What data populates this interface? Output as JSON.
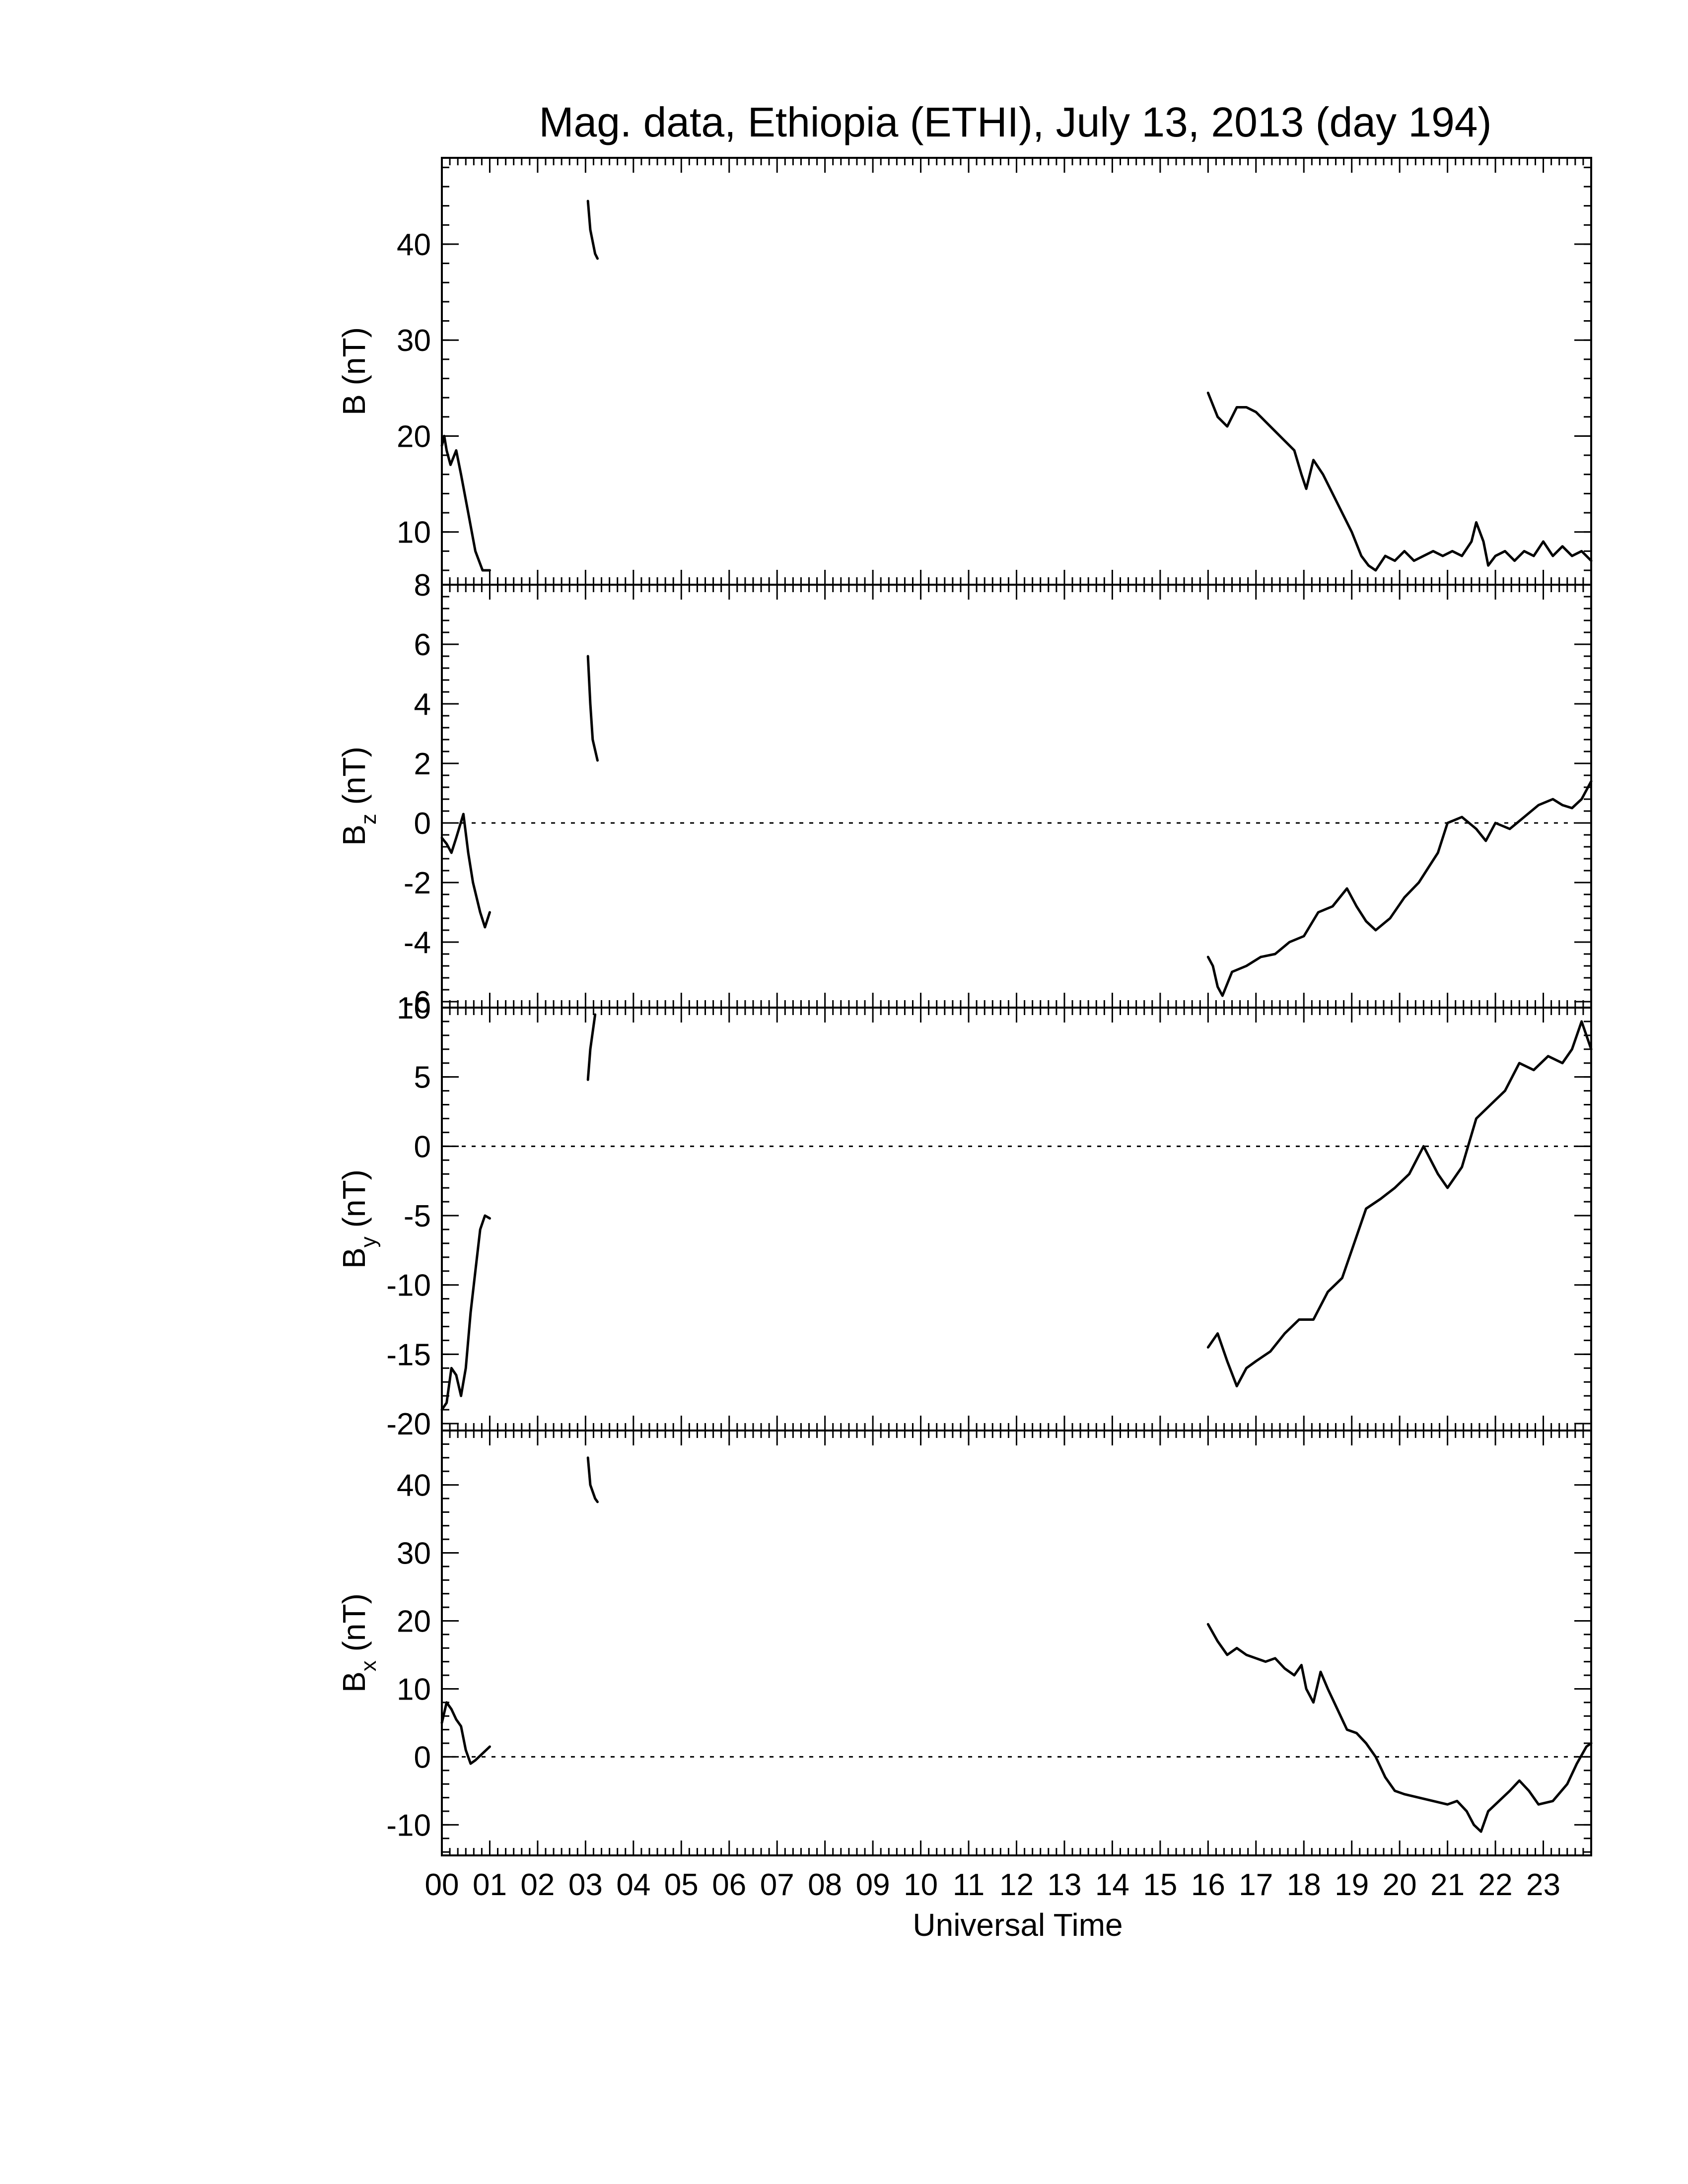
{
  "chart_data": {
    "type": "line",
    "title": "Mag. data, Ethiopia (ETHI), July 13, 2013 (day 194)",
    "xlabel": "Universal Time",
    "xlim": [
      0,
      24
    ],
    "x_tick_labels": [
      "00",
      "01",
      "02",
      "03",
      "04",
      "05",
      "06",
      "07",
      "08",
      "09",
      "10",
      "11",
      "12",
      "13",
      "14",
      "15",
      "16",
      "17",
      "18",
      "19",
      "20",
      "21",
      "22",
      "23"
    ],
    "panels": [
      {
        "ylabel": "B (nT)",
        "ylim": [
          4.5,
          49
        ],
        "yticks": [
          10,
          20,
          30,
          40
        ],
        "ytick_labels": [
          "10",
          "20",
          "30",
          "40"
        ],
        "zero_line": false,
        "segments": [
          [
            [
              0.0,
              19.0
            ],
            [
              0.05,
              20.0
            ],
            [
              0.1,
              18.5
            ],
            [
              0.18,
              17.0
            ],
            [
              0.3,
              18.5
            ],
            [
              0.4,
              16.0
            ],
            [
              0.55,
              12.0
            ],
            [
              0.7,
              8.0
            ],
            [
              0.85,
              6.0
            ],
            [
              1.0,
              6.0
            ]
          ],
          [
            [
              3.05,
              44.5
            ],
            [
              3.1,
              41.5
            ],
            [
              3.2,
              39.0
            ],
            [
              3.25,
              38.5
            ]
          ],
          [
            [
              16.0,
              24.5
            ],
            [
              16.2,
              22.0
            ],
            [
              16.4,
              21.0
            ],
            [
              16.6,
              23.0
            ],
            [
              16.8,
              23.0
            ],
            [
              17.0,
              22.5
            ],
            [
              17.2,
              21.5
            ],
            [
              17.4,
              20.5
            ],
            [
              17.6,
              19.5
            ],
            [
              17.8,
              18.5
            ],
            [
              17.95,
              16.0
            ],
            [
              18.05,
              14.5
            ],
            [
              18.2,
              17.5
            ],
            [
              18.4,
              16.0
            ],
            [
              18.6,
              14.0
            ],
            [
              18.8,
              12.0
            ],
            [
              19.0,
              10.0
            ],
            [
              19.2,
              7.5
            ],
            [
              19.35,
              6.5
            ],
            [
              19.5,
              6.0
            ],
            [
              19.7,
              7.5
            ],
            [
              19.9,
              7.0
            ],
            [
              20.1,
              8.0
            ],
            [
              20.3,
              7.0
            ],
            [
              20.5,
              7.5
            ],
            [
              20.7,
              8.0
            ],
            [
              20.9,
              7.5
            ],
            [
              21.1,
              8.0
            ],
            [
              21.3,
              7.5
            ],
            [
              21.5,
              9.0
            ],
            [
              21.6,
              11.0
            ],
            [
              21.75,
              9.0
            ],
            [
              21.85,
              6.5
            ],
            [
              22.0,
              7.5
            ],
            [
              22.2,
              8.0
            ],
            [
              22.4,
              7.0
            ],
            [
              22.6,
              8.0
            ],
            [
              22.8,
              7.5
            ],
            [
              23.0,
              9.0
            ],
            [
              23.2,
              7.5
            ],
            [
              23.4,
              8.5
            ],
            [
              23.6,
              7.5
            ],
            [
              23.8,
              8.0
            ],
            [
              24.0,
              7.0
            ]
          ]
        ]
      },
      {
        "ylabel": "B_z (nT)",
        "ylim": [
          -6.2,
          8.0
        ],
        "yticks": [
          -6,
          -4,
          -2,
          0,
          2,
          4,
          6,
          8
        ],
        "ytick_labels": [
          "-6",
          "-4",
          "-2",
          "0",
          "2",
          "4",
          "6",
          "8"
        ],
        "zero_line": true,
        "segments": [
          [
            [
              0.0,
              -0.5
            ],
            [
              0.1,
              -0.7
            ],
            [
              0.2,
              -1.0
            ],
            [
              0.3,
              -0.5
            ],
            [
              0.45,
              0.3
            ],
            [
              0.55,
              -1.0
            ],
            [
              0.65,
              -2.0
            ],
            [
              0.8,
              -3.0
            ],
            [
              0.9,
              -3.5
            ],
            [
              1.0,
              -3.0
            ]
          ],
          [
            [
              3.05,
              5.6
            ],
            [
              3.1,
              4.0
            ],
            [
              3.15,
              2.8
            ],
            [
              3.25,
              2.1
            ]
          ],
          [
            [
              16.0,
              -4.5
            ],
            [
              16.1,
              -4.8
            ],
            [
              16.2,
              -5.5
            ],
            [
              16.3,
              -5.8
            ],
            [
              16.5,
              -5.0
            ],
            [
              16.8,
              -4.8
            ],
            [
              17.1,
              -4.5
            ],
            [
              17.4,
              -4.4
            ],
            [
              17.7,
              -4.0
            ],
            [
              18.0,
              -3.8
            ],
            [
              18.3,
              -3.0
            ],
            [
              18.6,
              -2.8
            ],
            [
              18.9,
              -2.2
            ],
            [
              19.1,
              -2.8
            ],
            [
              19.3,
              -3.3
            ],
            [
              19.5,
              -3.6
            ],
            [
              19.8,
              -3.2
            ],
            [
              20.1,
              -2.5
            ],
            [
              20.4,
              -2.0
            ],
            [
              20.6,
              -1.5
            ],
            [
              20.8,
              -1.0
            ],
            [
              21.0,
              0.0
            ],
            [
              21.3,
              0.2
            ],
            [
              21.6,
              -0.2
            ],
            [
              21.8,
              -0.6
            ],
            [
              22.0,
              0.0
            ],
            [
              22.3,
              -0.2
            ],
            [
              22.6,
              0.2
            ],
            [
              22.9,
              0.6
            ],
            [
              23.2,
              0.8
            ],
            [
              23.4,
              0.6
            ],
            [
              23.6,
              0.5
            ],
            [
              23.8,
              0.8
            ],
            [
              24.0,
              1.4
            ]
          ]
        ]
      },
      {
        "ylabel": "B_y (nT)",
        "ylim": [
          -20.5,
          10.0
        ],
        "yticks": [
          -20,
          -15,
          -10,
          -5,
          0,
          5,
          10
        ],
        "ytick_labels": [
          "-20",
          "-15",
          "-10",
          "-5",
          "0",
          "5",
          "10"
        ],
        "zero_line": true,
        "segments": [
          [
            [
              0.0,
              -19.0
            ],
            [
              0.1,
              -18.5
            ],
            [
              0.2,
              -16.0
            ],
            [
              0.3,
              -16.5
            ],
            [
              0.4,
              -18.0
            ],
            [
              0.5,
              -16.0
            ],
            [
              0.6,
              -12.0
            ],
            [
              0.7,
              -9.0
            ],
            [
              0.8,
              -6.0
            ],
            [
              0.9,
              -5.0
            ],
            [
              1.0,
              -5.2
            ]
          ],
          [
            [
              3.05,
              4.8
            ],
            [
              3.1,
              7.0
            ],
            [
              3.2,
              9.5
            ]
          ],
          [
            [
              16.0,
              -14.5
            ],
            [
              16.2,
              -13.5
            ],
            [
              16.4,
              -15.5
            ],
            [
              16.6,
              -17.3
            ],
            [
              16.8,
              -16.0
            ],
            [
              17.0,
              -15.5
            ],
            [
              17.3,
              -14.8
            ],
            [
              17.6,
              -13.5
            ],
            [
              17.9,
              -12.5
            ],
            [
              18.2,
              -12.5
            ],
            [
              18.5,
              -10.5
            ],
            [
              18.8,
              -9.5
            ],
            [
              19.0,
              -7.5
            ],
            [
              19.3,
              -4.5
            ],
            [
              19.6,
              -3.8
            ],
            [
              19.9,
              -3.0
            ],
            [
              20.2,
              -2.0
            ],
            [
              20.5,
              0.0
            ],
            [
              20.8,
              -2.0
            ],
            [
              21.0,
              -3.0
            ],
            [
              21.3,
              -1.5
            ],
            [
              21.6,
              2.0
            ],
            [
              21.9,
              3.0
            ],
            [
              22.2,
              4.0
            ],
            [
              22.5,
              6.0
            ],
            [
              22.8,
              5.5
            ],
            [
              23.1,
              6.5
            ],
            [
              23.4,
              6.0
            ],
            [
              23.6,
              7.0
            ],
            [
              23.8,
              9.0
            ],
            [
              24.0,
              7.0
            ]
          ]
        ]
      },
      {
        "ylabel": "B_x (nT)",
        "ylim": [
          -14.5,
          48.0
        ],
        "yticks": [
          -10,
          0,
          10,
          20,
          30,
          40
        ],
        "ytick_labels": [
          "-10",
          "0",
          "10",
          "20",
          "30",
          "40"
        ],
        "zero_line": true,
        "segments": [
          [
            [
              0.0,
              5.0
            ],
            [
              0.1,
              8.0
            ],
            [
              0.2,
              7.0
            ],
            [
              0.3,
              5.5
            ],
            [
              0.4,
              4.5
            ],
            [
              0.5,
              1.0
            ],
            [
              0.6,
              -1.0
            ],
            [
              0.7,
              -0.5
            ],
            [
              0.85,
              0.5
            ],
            [
              1.0,
              1.5
            ]
          ],
          [
            [
              3.05,
              44.0
            ],
            [
              3.1,
              40.0
            ],
            [
              3.2,
              38.0
            ],
            [
              3.25,
              37.5
            ]
          ],
          [
            [
              16.0,
              19.5
            ],
            [
              16.2,
              17.0
            ],
            [
              16.4,
              15.0
            ],
            [
              16.6,
              16.0
            ],
            [
              16.8,
              15.0
            ],
            [
              17.0,
              14.5
            ],
            [
              17.2,
              14.0
            ],
            [
              17.4,
              14.5
            ],
            [
              17.6,
              13.0
            ],
            [
              17.8,
              12.0
            ],
            [
              17.95,
              13.5
            ],
            [
              18.05,
              10.0
            ],
            [
              18.2,
              8.0
            ],
            [
              18.35,
              12.5
            ],
            [
              18.5,
              10.0
            ],
            [
              18.7,
              7.0
            ],
            [
              18.9,
              4.0
            ],
            [
              19.1,
              3.5
            ],
            [
              19.3,
              2.0
            ],
            [
              19.5,
              0.0
            ],
            [
              19.7,
              -3.0
            ],
            [
              19.9,
              -5.0
            ],
            [
              20.1,
              -5.5
            ],
            [
              20.4,
              -6.0
            ],
            [
              20.7,
              -6.5
            ],
            [
              21.0,
              -7.0
            ],
            [
              21.2,
              -6.5
            ],
            [
              21.4,
              -8.0
            ],
            [
              21.55,
              -10.0
            ],
            [
              21.7,
              -11.0
            ],
            [
              21.85,
              -8.0
            ],
            [
              22.0,
              -7.0
            ],
            [
              22.3,
              -5.0
            ],
            [
              22.5,
              -3.5
            ],
            [
              22.7,
              -5.0
            ],
            [
              22.9,
              -7.0
            ],
            [
              23.2,
              -6.5
            ],
            [
              23.5,
              -4.0
            ],
            [
              23.7,
              -1.0
            ],
            [
              23.9,
              1.5
            ],
            [
              24.0,
              2.0
            ]
          ]
        ]
      }
    ]
  }
}
